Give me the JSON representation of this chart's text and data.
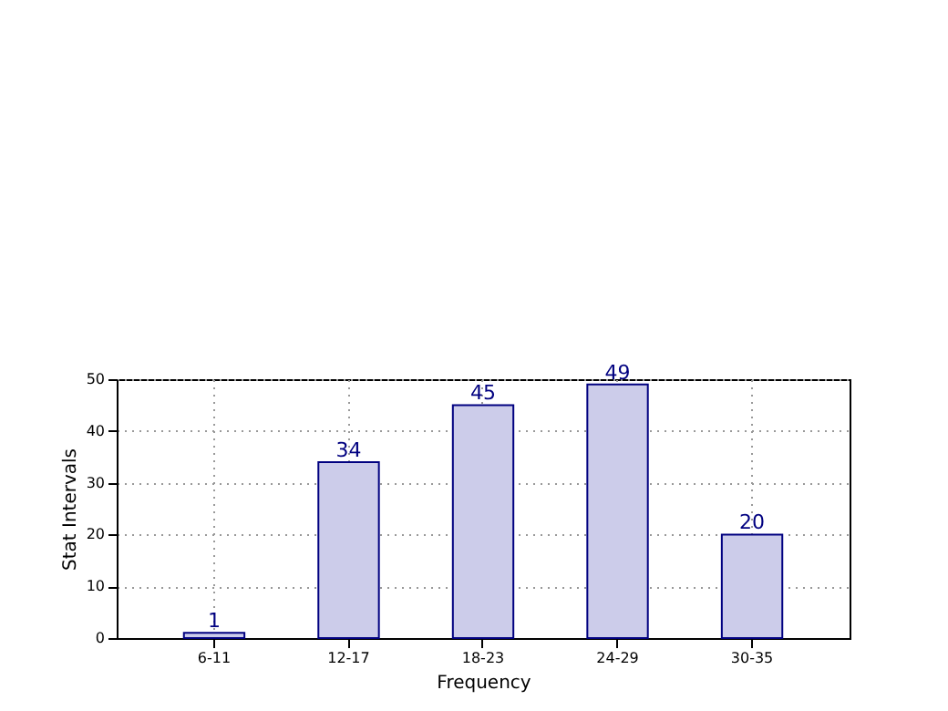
{
  "chart_data": {
    "type": "bar",
    "xlabel": "Frequency",
    "ylabel": "Stat Intervals",
    "categories": [
      "6-11",
      "12-17",
      "18-23",
      "24-29",
      "30-35"
    ],
    "values": [
      1,
      34,
      45,
      49,
      20
    ],
    "color": "#ccccea",
    "ylim": [
      0,
      50
    ],
    "yticks": [
      0,
      10,
      20,
      30,
      40,
      50
    ],
    "grid": true,
    "data_labels": true
  }
}
